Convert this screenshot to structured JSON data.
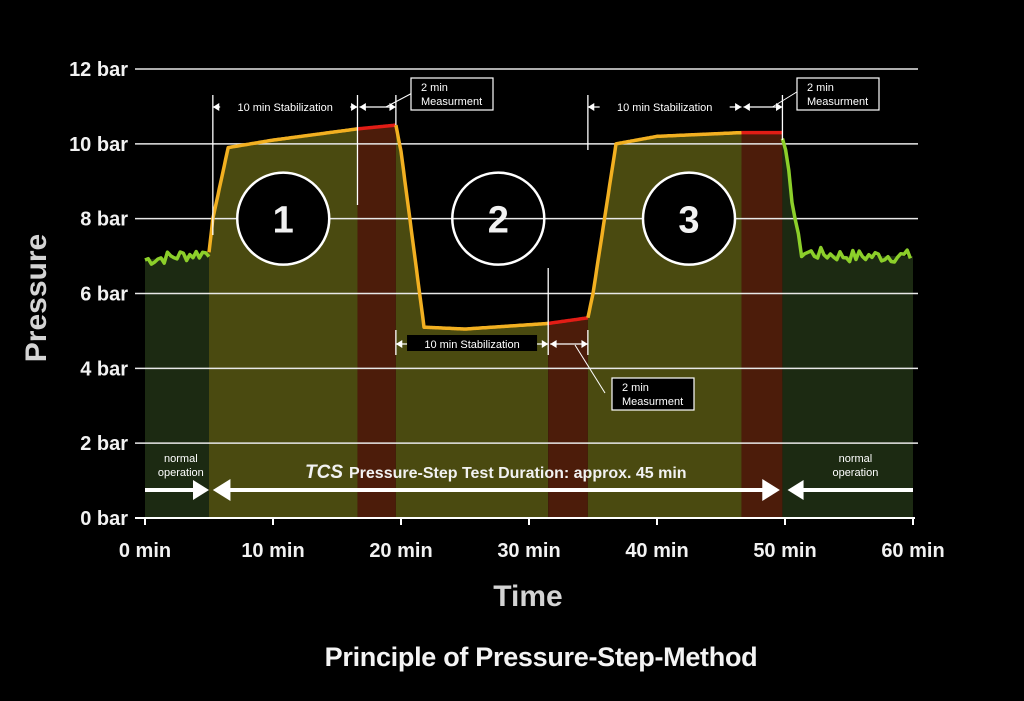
{
  "chart_data": {
    "type": "line",
    "ylabel": "Pressure",
    "xlabel": "Time",
    "ylim": [
      0,
      12
    ],
    "xlim": [
      0,
      60
    ],
    "y_ticks": [
      "0 bar",
      "2 bar",
      "4 bar",
      "6 bar",
      "8 bar",
      "10 bar",
      "12 bar"
    ],
    "x_ticks": [
      "0 min",
      "10 min",
      "20 min",
      "30 min",
      "40 min",
      "50 min",
      "60 min"
    ],
    "grid": "horizontal",
    "series": [
      {
        "x": [
          0,
          5,
          5.3,
          6.5,
          10,
          16.6,
          19.6,
          20,
          21.8,
          25,
          31.5,
          34.6,
          35,
          36.8,
          40,
          46.6,
          49.8,
          50,
          51.2,
          55,
          60
        ],
        "y": [
          6.9,
          7.1,
          8.0,
          9.9,
          10.1,
          10.4,
          10.5,
          9.8,
          5.1,
          5.05,
          5.2,
          5.35,
          6.0,
          10.0,
          10.2,
          10.3,
          10.3,
          9.8,
          7.1,
          7.0,
          7.0
        ]
      }
    ],
    "phases": [
      {
        "label": "normal operation",
        "start": 0,
        "end": 5
      },
      {
        "label": "1",
        "start": 5,
        "end": 16.6,
        "stage": "10 min Stabilization"
      },
      {
        "label": "1",
        "start": 16.6,
        "end": 19.6,
        "stage": "2 min Measurment"
      },
      {
        "label": "2",
        "start": 19.6,
        "end": 31.5,
        "stage": "10 min Stabilization"
      },
      {
        "label": "2",
        "start": 31.5,
        "end": 34.6,
        "stage": "2 min Measurment"
      },
      {
        "label": "3",
        "start": 34.6,
        "end": 46.6,
        "stage": "10 min Stabilization"
      },
      {
        "label": "3",
        "start": 46.6,
        "end": 49.8,
        "stage": "2 min Measurment"
      },
      {
        "label": "normal operation",
        "start": 49.8,
        "end": 60
      }
    ],
    "step_labels": [
      "1",
      "2",
      "3"
    ],
    "annotations": {
      "stabilization": "10 min Stabilization",
      "measurement_line1": "2 min",
      "measurement_line2": "Measurment",
      "normal_line1": "normal",
      "normal_line2": "operation",
      "duration_brand": "TCS",
      "duration_text": "Pressure-Step Test Duration: approx. 45 min"
    },
    "title": "Principle of Pressure-Step-Method"
  },
  "colors": {
    "background": "#000000",
    "grid": "#e8e8e8",
    "normal_fill": "#1c2a12",
    "stabilization_fill": "#4a4a10",
    "measurement_fill": "#4c1c0a",
    "normal_curve": "#8ccf2a",
    "stabilization_curve": "#f2b021",
    "measurement_curve": "#e21d16"
  }
}
